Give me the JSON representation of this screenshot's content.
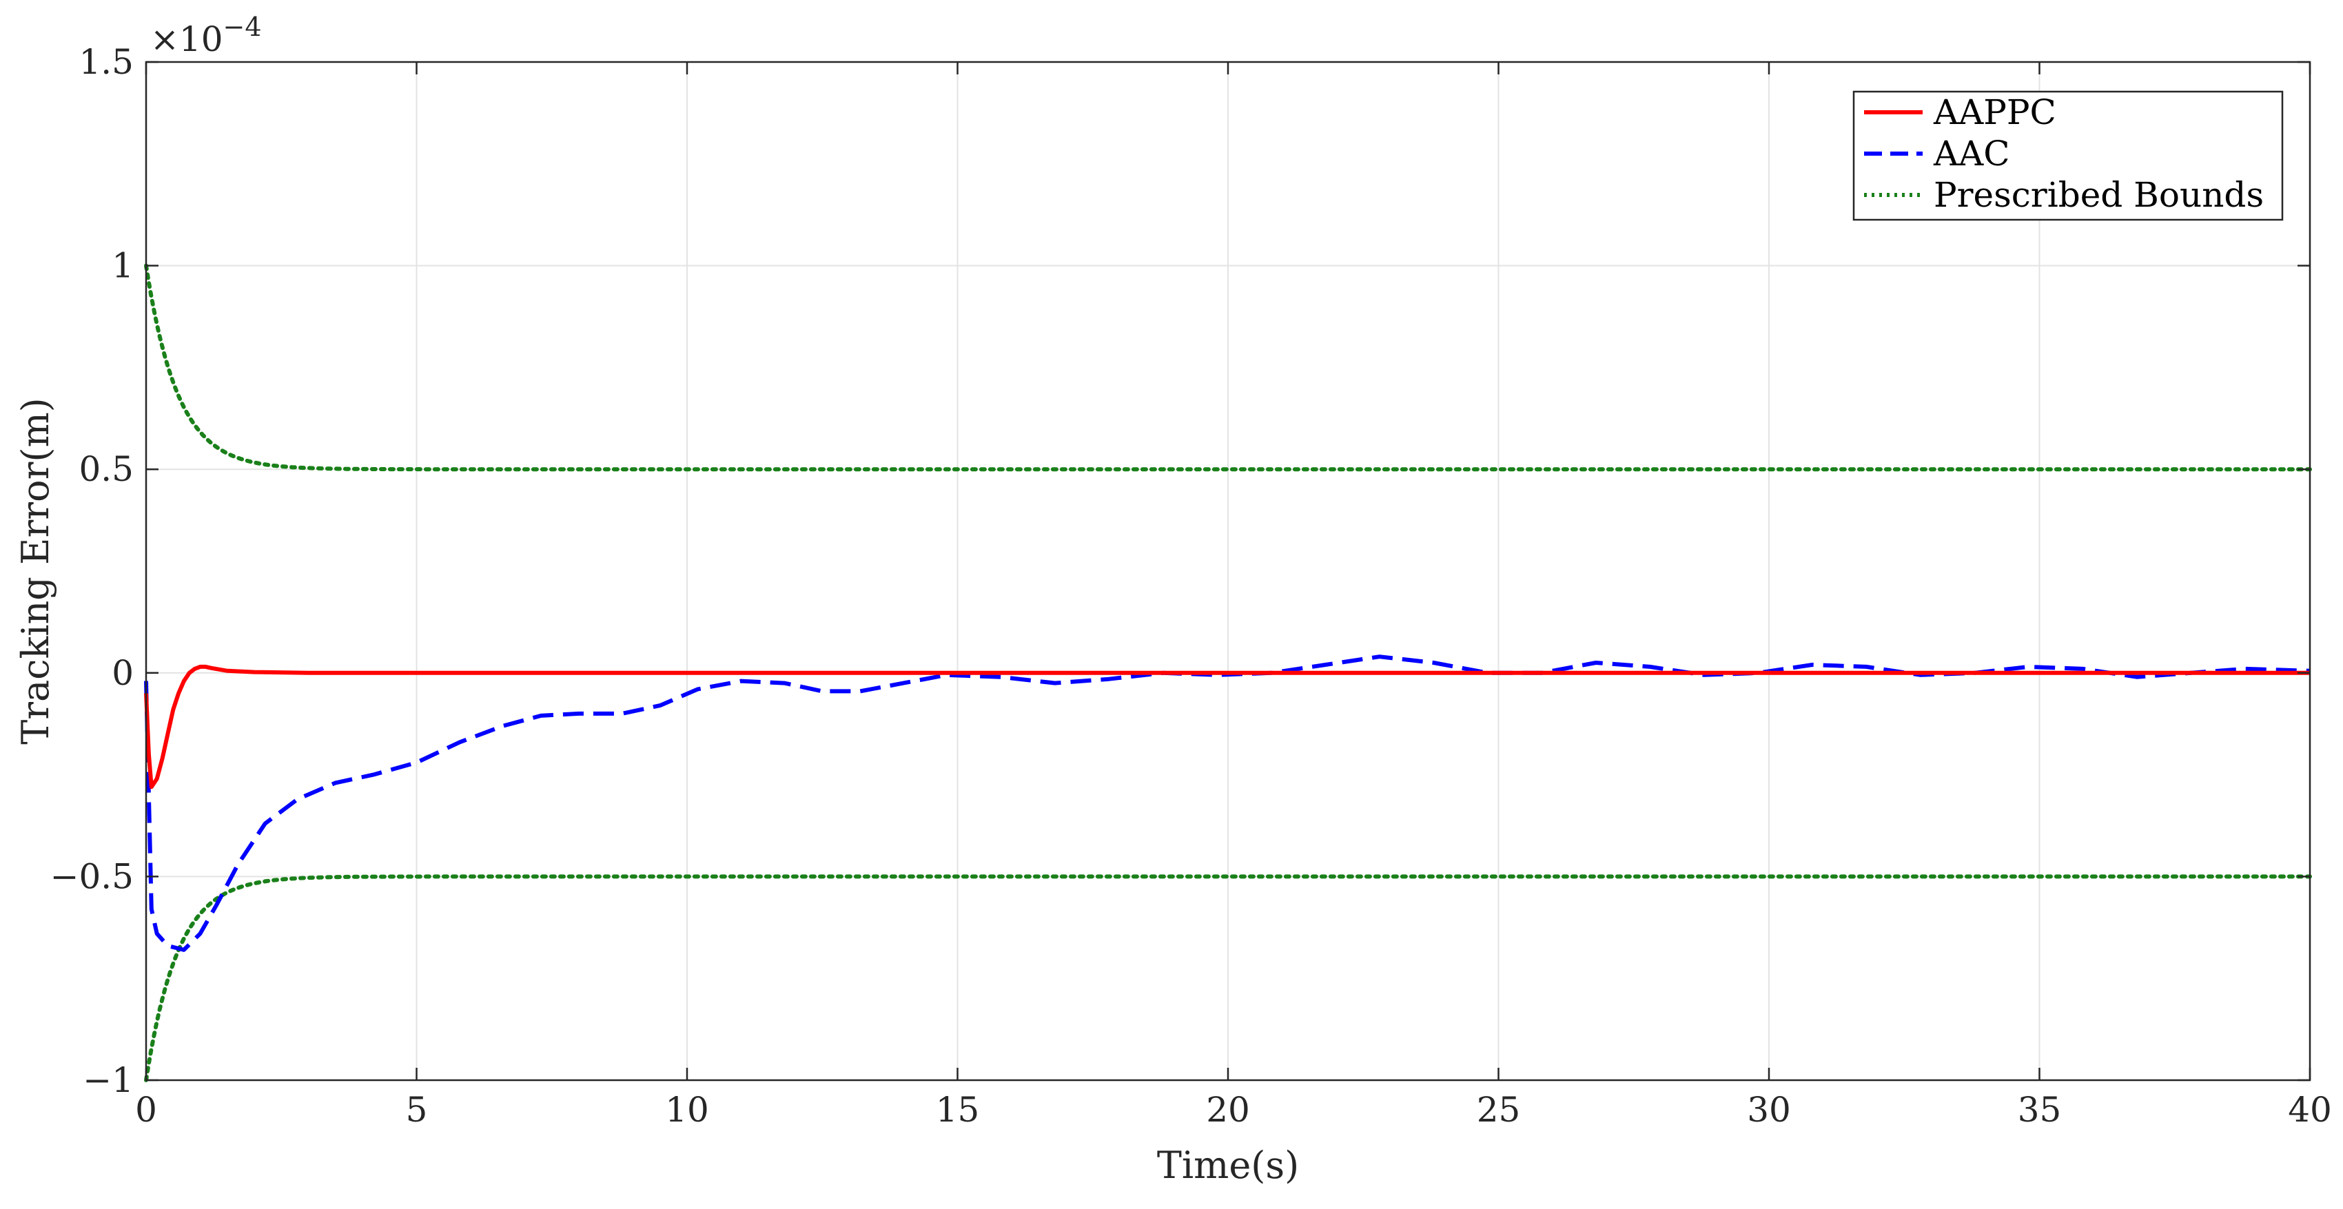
{
  "chart_data": {
    "type": "line",
    "title": "",
    "xlabel": "Time(s)",
    "ylabel": "Tracking Error(m)",
    "y_exponent_label": "×10",
    "y_exponent_power": "−4",
    "xlim": [
      0,
      40
    ],
    "ylim": [
      -1,
      1.5
    ],
    "x_ticks": [
      0,
      5,
      10,
      15,
      20,
      25,
      30,
      35,
      40
    ],
    "x_tick_labels": [
      "0",
      "5",
      "10",
      "15",
      "20",
      "25",
      "30",
      "35",
      "40"
    ],
    "y_ticks": [
      -1,
      -0.5,
      0,
      0.5,
      1,
      1.5
    ],
    "y_tick_labels": [
      "−1",
      "−0.5",
      "0",
      "0.5",
      "1",
      "1.5"
    ],
    "grid": true,
    "legend_position": "top-right",
    "series": [
      {
        "name": "AAPPC",
        "color": "#ff0000",
        "style": "solid",
        "x": [
          0,
          0.05,
          0.1,
          0.2,
          0.3,
          0.4,
          0.5,
          0.6,
          0.7,
          0.8,
          0.9,
          1.0,
          1.1,
          1.2,
          1.5,
          2.0,
          3,
          5,
          7,
          10,
          13,
          16,
          19,
          22,
          25,
          28,
          31,
          34,
          37,
          40
        ],
        "y": [
          -0.05,
          -0.2,
          -0.28,
          -0.26,
          -0.21,
          -0.15,
          -0.09,
          -0.05,
          -0.02,
          0.0,
          0.01,
          0.015,
          0.015,
          0.012,
          0.005,
          0.002,
          0.0,
          0.0,
          0.0,
          0.0,
          0.0,
          0.0,
          0.0,
          0.0,
          0.0,
          0.0,
          0.0,
          0.0,
          0.0,
          0.0
        ]
      },
      {
        "name": "AAC",
        "color": "#0000ff",
        "style": "dashed",
        "x": [
          0,
          0.05,
          0.1,
          0.2,
          0.4,
          0.7,
          1.0,
          1.3,
          1.7,
          2.2,
          2.8,
          3.5,
          4.2,
          5.0,
          5.8,
          6.6,
          7.3,
          8.0,
          8.8,
          9.5,
          10.2,
          11.0,
          11.8,
          12.5,
          13.2,
          14.0,
          14.8,
          15.8,
          16.8,
          17.8,
          18.8,
          19.8,
          20.8,
          21.8,
          22.8,
          23.8,
          24.8,
          25.8,
          26.8,
          27.8,
          28.8,
          29.8,
          30.8,
          31.8,
          32.8,
          33.8,
          34.8,
          35.8,
          36.8,
          37.8,
          38.8,
          40.0
        ],
        "y": [
          -0.02,
          -0.3,
          -0.58,
          -0.64,
          -0.67,
          -0.68,
          -0.64,
          -0.57,
          -0.47,
          -0.37,
          -0.31,
          -0.27,
          -0.25,
          -0.22,
          -0.17,
          -0.13,
          -0.105,
          -0.1,
          -0.1,
          -0.08,
          -0.04,
          -0.02,
          -0.025,
          -0.045,
          -0.045,
          -0.025,
          -0.005,
          -0.01,
          -0.025,
          -0.015,
          0.0,
          -0.005,
          0.0,
          0.02,
          0.04,
          0.025,
          0.0,
          0.0,
          0.025,
          0.015,
          -0.005,
          0.0,
          0.02,
          0.015,
          -0.005,
          0.0,
          0.015,
          0.01,
          -0.01,
          0.0,
          0.01,
          0.005
        ]
      },
      {
        "name": "Prescribed Bounds",
        "color": "#1a801a",
        "style": "dotted",
        "function": "bound",
        "rho0": 1.0,
        "rho_inf": 0.5,
        "decay": 1.7
      }
    ]
  }
}
